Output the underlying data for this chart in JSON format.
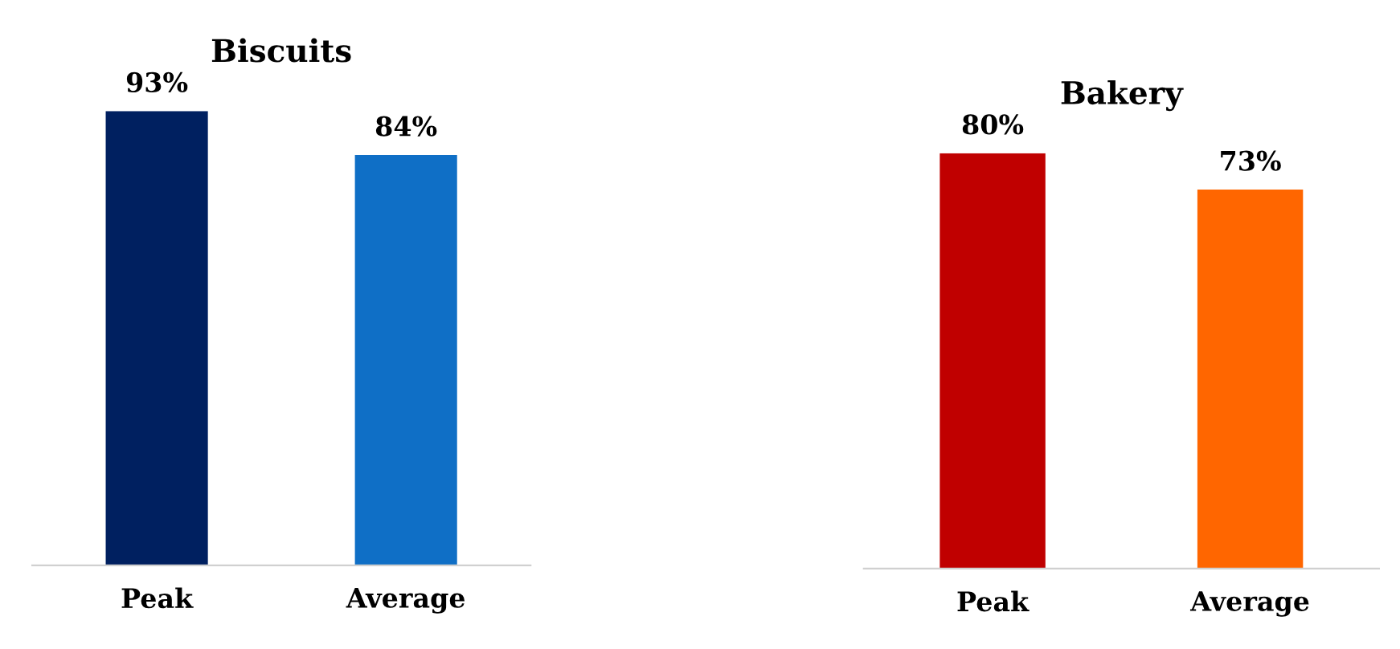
{
  "chart_data": [
    {
      "type": "bar",
      "title": "Biscuits",
      "categories": [
        "Peak",
        "Average"
      ],
      "values": [
        93,
        84
      ],
      "colors": [
        "#002060",
        "#0f6fc6"
      ],
      "value_labels": [
        "93%",
        "84%"
      ],
      "grid": false,
      "legend": false
    },
    {
      "type": "bar",
      "title": "Bakery",
      "categories": [
        "Peak",
        "Average"
      ],
      "values": [
        80,
        73
      ],
      "colors": [
        "#c00000",
        "#ff6600"
      ],
      "value_labels": [
        "80%",
        "73%"
      ],
      "grid": false,
      "legend": false
    }
  ]
}
